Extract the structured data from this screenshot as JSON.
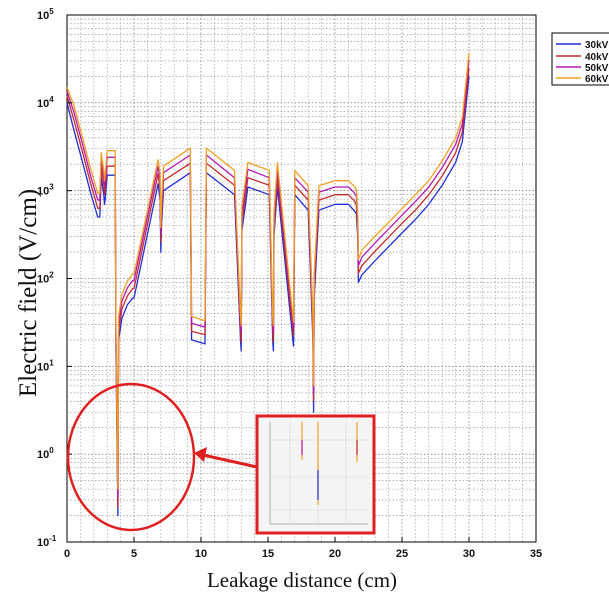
{
  "chart_data": {
    "type": "line",
    "title": "",
    "xlabel": "Leakage distance (cm)",
    "ylabel": "Electric field (V/cm)",
    "xlim": [
      0,
      35
    ],
    "ylim": [
      0.1,
      100000
    ],
    "yscale": "log",
    "grid": true,
    "legend_position": "top-right",
    "x_ticks": [
      "0",
      "5",
      "10",
      "15",
      "20",
      "25",
      "30",
      "35"
    ],
    "y_ticks": [
      {
        "base": "10",
        "exp": "-1"
      },
      {
        "base": "10",
        "exp": "0"
      },
      {
        "base": "10",
        "exp": "1"
      },
      {
        "base": "10",
        "exp": "2"
      },
      {
        "base": "10",
        "exp": "3"
      },
      {
        "base": "10",
        "exp": "4"
      },
      {
        "base": "10",
        "exp": "5"
      }
    ],
    "x": [
      0,
      0.5,
      1.2,
      1.8,
      2.3,
      2.45,
      2.55,
      2.75,
      2.8,
      2.85,
      3.0,
      3.6,
      3.65,
      3.75,
      3.8,
      3.85,
      4.1,
      4.5,
      4.9,
      5.0,
      6.8,
      6.95,
      7.0,
      7.05,
      7.2,
      9.2,
      9.3,
      10.3,
      10.4,
      12.5,
      12.95,
      13.0,
      13.05,
      13.5,
      15.1,
      15.35,
      15.4,
      15.45,
      15.7,
      16.9,
      17.0,
      18.0,
      18.35,
      18.4,
      18.45,
      18.8,
      20.0,
      21.0,
      21.4,
      21.6,
      21.7,
      21.75,
      22.0,
      23.0,
      24.0,
      25.0,
      26.0,
      27.0,
      28.0,
      29.0,
      29.5,
      30.0
    ],
    "series": [
      {
        "name": "30kV",
        "color": "#1f2fd6",
        "values": [
          10000,
          5000,
          2000,
          900,
          500,
          500,
          1400,
          900,
          700,
          800,
          1500,
          1500,
          15,
          0.8,
          0.2,
          20,
          35,
          50,
          60,
          60,
          1200,
          800,
          200,
          400,
          1000,
          1600,
          20,
          18,
          1600,
          900,
          20,
          15,
          350,
          1100,
          900,
          20,
          15,
          300,
          1100,
          17,
          900,
          600,
          20,
          3,
          60,
          600,
          700,
          700,
          600,
          550,
          280,
          90,
          110,
          160,
          230,
          330,
          470,
          700,
          1150,
          2100,
          3600,
          20000
        ]
      },
      {
        "name": "40kV",
        "color": "#c42b2b",
        "values": [
          12000,
          6500,
          2600,
          1150,
          630,
          630,
          1800,
          1150,
          900,
          1050,
          1900,
          1900,
          20,
          1.0,
          0.25,
          25,
          45,
          63,
          77,
          77,
          1550,
          1050,
          260,
          500,
          1300,
          2050,
          25,
          23,
          2050,
          1150,
          25,
          19,
          450,
          1400,
          1150,
          25,
          19,
          380,
          1400,
          22,
          1150,
          780,
          25,
          4,
          77,
          780,
          900,
          900,
          780,
          700,
          360,
          115,
          140,
          205,
          295,
          425,
          600,
          900,
          1470,
          2700,
          4600,
          25000
        ]
      },
      {
        "name": "50kV",
        "color": "#b418b4",
        "values": [
          13500,
          8000,
          3200,
          1400,
          780,
          780,
          2250,
          1400,
          1100,
          1300,
          2400,
          2400,
          25,
          1.2,
          0.32,
          31,
          55,
          78,
          95,
          95,
          1900,
          1300,
          320,
          620,
          1600,
          2550,
          31,
          28,
          2550,
          1400,
          31,
          24,
          560,
          1750,
          1400,
          31,
          24,
          470,
          1750,
          27,
          1400,
          960,
          31,
          5,
          95,
          960,
          1100,
          1100,
          960,
          860,
          440,
          140,
          175,
          255,
          365,
          525,
          750,
          1100,
          1830,
          3350,
          5700,
          31000
        ]
      },
      {
        "name": "60kV",
        "color": "#f0a020",
        "values": [
          15000,
          9500,
          3800,
          1700,
          930,
          930,
          2700,
          1700,
          1300,
          1550,
          2850,
          2850,
          30,
          1.4,
          0.4,
          37,
          66,
          93,
          113,
          113,
          2250,
          1550,
          380,
          740,
          1900,
          3050,
          37,
          33,
          3050,
          1700,
          37,
          29,
          660,
          2100,
          1700,
          37,
          29,
          560,
          2100,
          32,
          1700,
          1140,
          37,
          6,
          113,
          1140,
          1300,
          1300,
          1140,
          1020,
          520,
          165,
          210,
          305,
          435,
          625,
          900,
          1300,
          2180,
          4000,
          6800,
          37000
        ]
      }
    ]
  }
}
